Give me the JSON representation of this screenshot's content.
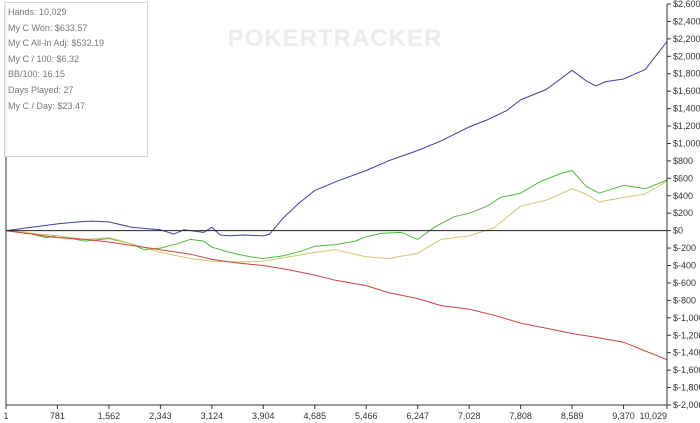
{
  "watermark": "POKERTRACKER",
  "stats": [
    "Hands: 10,029",
    "My C Won: $633.57",
    "My C All-In Adj: $532.19",
    "My C / 100: $6.32",
    "BB/100: 16.15",
    "Days Played: 27",
    "My C / Day: $23.47"
  ],
  "chart_data": {
    "type": "line",
    "x_ticks": [
      "1",
      "781",
      "1,562",
      "2,343",
      "3,124",
      "3,904",
      "4,685",
      "5,466",
      "6,247",
      "7,028",
      "7,808",
      "8,589",
      "9,370",
      "10,029"
    ],
    "y_ticks": [
      "$2,600",
      "$2,400",
      "$2,200",
      "$2,000",
      "$1,800",
      "$1,600",
      "$1,400",
      "$1,200",
      "$1,000",
      "$800",
      "$600",
      "$400",
      "$200",
      "$0",
      "$-200",
      "$-400",
      "$-600",
      "$-800",
      "$-1,000",
      "$-1,200",
      "$-1,400",
      "$-1,600",
      "$-1,800",
      "$-2,000"
    ],
    "xlim": [
      1,
      10029
    ],
    "ylim": [
      -2000,
      2600
    ],
    "y_axis_position": "right",
    "grid": false,
    "zero_line": true,
    "series": [
      {
        "color": "#3b3fa8",
        "x": [
          1,
          300,
          800,
          1100,
          1300,
          1562,
          1900,
          2343,
          2550,
          2700,
          3000,
          3124,
          3250,
          3400,
          3600,
          3904,
          4000,
          4200,
          4450,
          4685,
          5000,
          5466,
          5800,
          6247,
          6600,
          7028,
          7300,
          7600,
          7808,
          8200,
          8589,
          8800,
          8950,
          9100,
          9370,
          9700,
          10029
        ],
        "y": [
          0,
          30,
          80,
          100,
          110,
          100,
          40,
          10,
          -40,
          10,
          -20,
          40,
          -50,
          -60,
          -50,
          -60,
          -40,
          140,
          320,
          460,
          560,
          690,
          800,
          920,
          1030,
          1190,
          1270,
          1380,
          1500,
          1620,
          1840,
          1720,
          1660,
          1710,
          1740,
          1850,
          2170
        ]
      },
      {
        "color": "#4bbb3a",
        "x": [
          1,
          300,
          600,
          781,
          1200,
          1562,
          1900,
          2100,
          2343,
          2600,
          2800,
          3000,
          3124,
          3400,
          3700,
          3904,
          4200,
          4500,
          4685,
          5000,
          5300,
          5466,
          5700,
          6000,
          6247,
          6500,
          6800,
          7028,
          7300,
          7500,
          7808,
          8100,
          8400,
          8589,
          8800,
          9000,
          9370,
          9700,
          10029
        ],
        "y": [
          0,
          -20,
          -80,
          -60,
          -120,
          -90,
          -150,
          -220,
          -200,
          -150,
          -100,
          -120,
          -190,
          -250,
          -300,
          -320,
          -290,
          -230,
          -180,
          -160,
          -120,
          -70,
          -30,
          -20,
          -100,
          40,
          160,
          200,
          280,
          380,
          430,
          560,
          650,
          690,
          510,
          430,
          520,
          480,
          580
        ]
      },
      {
        "color": "#d6c36a",
        "x": [
          1,
          400,
          781,
          1200,
          1562,
          1900,
          2343,
          2800,
          3124,
          3500,
          3904,
          4300,
          4685,
          5000,
          5466,
          5800,
          6247,
          6600,
          7028,
          7400,
          7808,
          8200,
          8589,
          8800,
          9000,
          9370,
          9700,
          10029
        ],
        "y": [
          0,
          -30,
          -60,
          -100,
          -80,
          -150,
          -250,
          -320,
          -350,
          -360,
          -350,
          -300,
          -250,
          -220,
          -300,
          -320,
          -260,
          -100,
          -60,
          30,
          280,
          350,
          480,
          420,
          330,
          380,
          420,
          570
        ]
      },
      {
        "color": "#d0443e",
        "x": [
          1,
          400,
          781,
          1200,
          1562,
          2000,
          2343,
          2800,
          3124,
          3500,
          3904,
          4300,
          4685,
          5000,
          5466,
          5800,
          6247,
          6600,
          7028,
          7400,
          7808,
          8200,
          8589,
          9000,
          9370,
          9700,
          10029
        ],
        "y": [
          0,
          -40,
          -80,
          -100,
          -130,
          -180,
          -220,
          -270,
          -330,
          -370,
          -400,
          -450,
          -510,
          -570,
          -630,
          -710,
          -780,
          -860,
          -900,
          -970,
          -1060,
          -1120,
          -1180,
          -1230,
          -1280,
          -1380,
          -1480
        ]
      }
    ]
  }
}
